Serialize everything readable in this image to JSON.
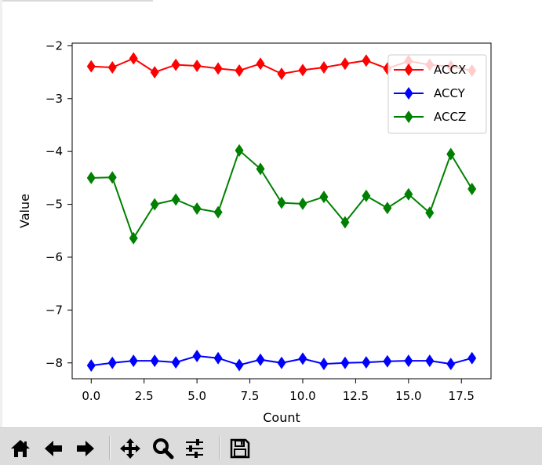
{
  "chart_data": {
    "type": "line",
    "title": "",
    "xlabel": "Count",
    "ylabel": "Value",
    "xlim": [
      -0.9,
      18.9
    ],
    "ylim": [
      -8.3,
      -1.95
    ],
    "xticks": [
      0.0,
      2.5,
      5.0,
      7.5,
      10.0,
      12.5,
      15.0,
      17.5
    ],
    "xtick_labels": [
      "0.0",
      "2.5",
      "5.0",
      "7.5",
      "10.0",
      "12.5",
      "15.0",
      "17.5"
    ],
    "yticks": [
      -2,
      -3,
      -4,
      -5,
      -6,
      -7,
      -8
    ],
    "ytick_labels": [
      "−2",
      "−3",
      "−4",
      "−5",
      "−6",
      "−7",
      "−8"
    ],
    "grid": false,
    "legend_position": "top-right",
    "marker": "diamond",
    "x": [
      0,
      1,
      2,
      3,
      4,
      5,
      6,
      7,
      8,
      9,
      10,
      11,
      12,
      13,
      14,
      15,
      16,
      17,
      18
    ],
    "series": [
      {
        "name": "ACCX",
        "color": "#ff0000",
        "values": [
          -2.39,
          -2.41,
          -2.24,
          -2.5,
          -2.36,
          -2.38,
          -2.43,
          -2.47,
          -2.34,
          -2.53,
          -2.46,
          -2.41,
          -2.34,
          -2.28,
          -2.43,
          -2.29,
          -2.36,
          -2.39,
          -2.47
        ]
      },
      {
        "name": "ACCY",
        "color": "#0000ff",
        "values": [
          -8.05,
          -8.0,
          -7.96,
          -7.96,
          -7.99,
          -7.87,
          -7.91,
          -8.04,
          -7.94,
          -8.0,
          -7.92,
          -8.02,
          -8.0,
          -7.99,
          -7.97,
          -7.96,
          -7.96,
          -8.02,
          -7.91
        ]
      },
      {
        "name": "ACCZ",
        "color": "#008000",
        "values": [
          -4.5,
          -4.49,
          -5.64,
          -5.0,
          -4.91,
          -5.08,
          -5.15,
          -3.98,
          -4.33,
          -4.97,
          -4.99,
          -4.86,
          -5.34,
          -4.84,
          -5.07,
          -4.81,
          -5.16,
          -4.05,
          -4.71
        ]
      }
    ]
  },
  "toolbar": {
    "items": [
      {
        "name": "home-button",
        "icon": "home-icon"
      },
      {
        "name": "back-button",
        "icon": "arrow-left-icon"
      },
      {
        "name": "forward-button",
        "icon": "arrow-right-icon"
      },
      {
        "name": "pan-button",
        "icon": "move-icon"
      },
      {
        "name": "zoom-button",
        "icon": "magnifier-icon"
      },
      {
        "name": "configure-subplots-button",
        "icon": "sliders-icon"
      },
      {
        "name": "save-button",
        "icon": "floppy-disk-icon"
      }
    ]
  }
}
